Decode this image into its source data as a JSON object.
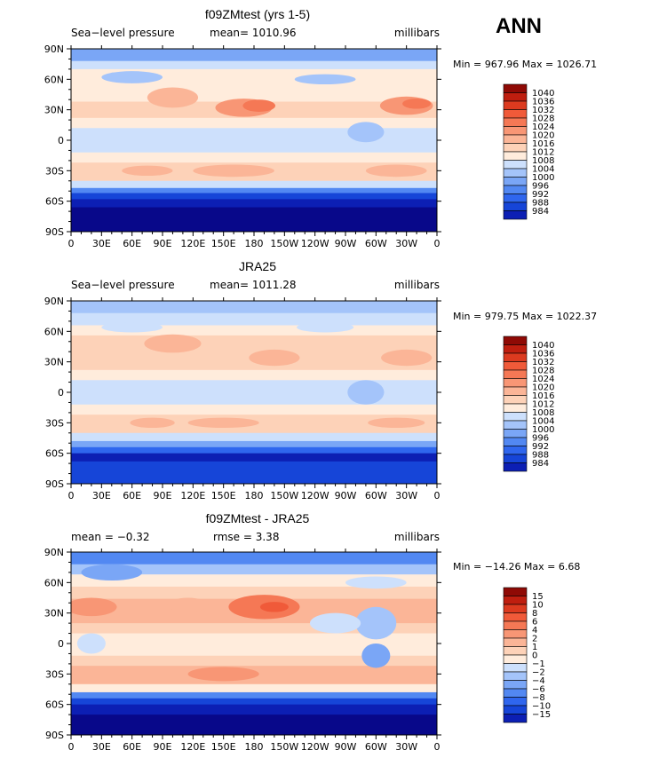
{
  "season": "ANN",
  "lon_ticks": [
    "0",
    "30E",
    "60E",
    "90E",
    "120E",
    "150E",
    "180",
    "150W",
    "120W",
    "90W",
    "60W",
    "30W",
    "0"
  ],
  "lat_ticks": [
    "90N",
    "60N",
    "30N",
    "0",
    "30S",
    "60S",
    "90S"
  ],
  "palette": {
    "blues": [
      "#08088a",
      "#0c1fb4",
      "#1645d8",
      "#2f66ee",
      "#5288f2",
      "#7aa6f6",
      "#a4c4fa",
      "#cde0fc"
    ],
    "reds": [
      "#ffecdc",
      "#fdd2b8",
      "#fbb597",
      "#f89675",
      "#f57855",
      "#f05a39",
      "#dc3a1f",
      "#bf1e0f",
      "#8f0a05"
    ]
  },
  "panels": [
    {
      "title": "f09ZMtest (yrs 1-5)",
      "left_label": "Sea−level pressure",
      "center_label": "mean= 1010.96",
      "right_label": "millibars",
      "minmax": "Min = 967.96 Max = 1026.71",
      "colorbar_labels": [
        "1040",
        "1036",
        "1032",
        "1028",
        "1024",
        "1020",
        "1016",
        "1012",
        "1008",
        "1004",
        "1000",
        "996",
        "992",
        "988",
        "984"
      ]
    },
    {
      "title": "JRA25",
      "left_label": "Sea−level pressure",
      "center_label": "mean= 1011.28",
      "right_label": "millibars",
      "minmax": "Min = 979.75 Max = 1022.37",
      "colorbar_labels": [
        "1040",
        "1036",
        "1032",
        "1028",
        "1024",
        "1020",
        "1016",
        "1012",
        "1008",
        "1004",
        "1000",
        "996",
        "992",
        "988",
        "984"
      ]
    },
    {
      "title": "f09ZMtest - JRA25",
      "left_label": "mean =   −0.32",
      "center_label": "rmse =    3.38",
      "right_label": "millibars",
      "minmax": "Min = −14.26 Max =    6.68",
      "colorbar_labels": [
        "15",
        "10",
        "8",
        "6",
        "4",
        "2",
        "1",
        "0",
        "−1",
        "−2",
        "−4",
        "−6",
        "−8",
        "−10",
        "−15"
      ]
    }
  ]
}
